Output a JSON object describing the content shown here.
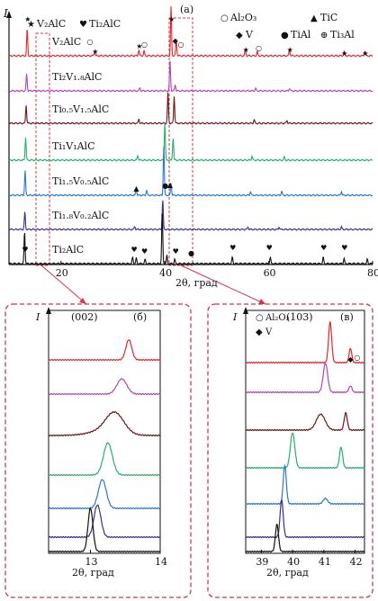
{
  "chart_data": [
    {
      "panel": "(а)",
      "type": "line",
      "xlabel": "2θ, град",
      "ylabel": "I",
      "xlim": [
        10,
        80
      ],
      "x_ticks": [
        20,
        40,
        60,
        80
      ],
      "grid": false,
      "legend": {
        "placement": "top",
        "entries": [
          {
            "symbol": "★",
            "label": "V₂AlC"
          },
          {
            "symbol": "♥",
            "label": "Ti₂AlC"
          },
          {
            "symbol": "○",
            "label": "Al₂O₃"
          },
          {
            "symbol": "▲",
            "label": "TiC"
          },
          {
            "symbol": "◆",
            "label": "V"
          },
          {
            "symbol": "●",
            "label": "TiAl"
          },
          {
            "symbol": "⊕",
            "label": "Ti₃Al"
          }
        ]
      },
      "series": [
        {
          "name": "V₂AlC",
          "color": "#e8232a",
          "peaks": [
            {
              "x": 13.5,
              "h": 0.55
            },
            {
              "x": 26.5,
              "h": 0.08
            },
            {
              "x": 35.0,
              "h": 0.12
            },
            {
              "x": 36.0,
              "h": 0.1
            },
            {
              "x": 41.2,
              "h": 1.0
            },
            {
              "x": 42.2,
              "h": 0.35
            },
            {
              "x": 55.5,
              "h": 0.12
            },
            {
              "x": 57.8,
              "h": 0.08
            },
            {
              "x": 64.0,
              "h": 0.12
            },
            {
              "x": 74.5,
              "h": 0.08
            },
            {
              "x": 78.5,
              "h": 0.1
            }
          ]
        },
        {
          "name": "Ti₂V₁.₈AlC",
          "color": "#b545b5",
          "peaks": [
            {
              "x": 13.4,
              "h": 0.55
            },
            {
              "x": 35.2,
              "h": 0.1
            },
            {
              "x": 41.0,
              "h": 0.95
            },
            {
              "x": 42.0,
              "h": 0.2
            },
            {
              "x": 57.5,
              "h": 0.08
            },
            {
              "x": 64.0,
              "h": 0.08
            }
          ]
        },
        {
          "name": "Ti₀.₅V₁.₅AlC",
          "color": "#6b1616",
          "peaks": [
            {
              "x": 13.3,
              "h": 0.5
            },
            {
              "x": 35.0,
              "h": 0.12
            },
            {
              "x": 40.6,
              "h": 0.85
            },
            {
              "x": 41.8,
              "h": 0.75
            },
            {
              "x": 57.2,
              "h": 0.1
            },
            {
              "x": 63.5,
              "h": 0.08
            }
          ]
        },
        {
          "name": "Ti₁V₁AlC",
          "color": "#25b06b",
          "peaks": [
            {
              "x": 13.2,
              "h": 0.55
            },
            {
              "x": 34.8,
              "h": 0.12
            },
            {
              "x": 40.0,
              "h": 0.9
            },
            {
              "x": 41.6,
              "h": 0.55
            },
            {
              "x": 56.8,
              "h": 0.1
            },
            {
              "x": 63.0,
              "h": 0.08
            }
          ]
        },
        {
          "name": "Ti₁.₅V₀.₅AlC",
          "color": "#2a78c9",
          "peaks": [
            {
              "x": 13.1,
              "h": 0.5
            },
            {
              "x": 34.5,
              "h": 0.12
            },
            {
              "x": 36.5,
              "h": 0.1
            },
            {
              "x": 39.8,
              "h": 1.0
            },
            {
              "x": 41.2,
              "h": 0.25
            },
            {
              "x": 56.5,
              "h": 0.08
            },
            {
              "x": 62.5,
              "h": 0.08
            },
            {
              "x": 74.0,
              "h": 0.08
            }
          ]
        },
        {
          "name": "Ti₁.₈V₀.₂AlC",
          "color": "#3a2f8a",
          "peaks": [
            {
              "x": 13.05,
              "h": 0.55
            },
            {
              "x": 34.2,
              "h": 0.1
            },
            {
              "x": 39.6,
              "h": 0.95
            },
            {
              "x": 56.0,
              "h": 0.08
            },
            {
              "x": 62.0,
              "h": 0.08
            },
            {
              "x": 74.0,
              "h": 0.08
            }
          ]
        },
        {
          "name": "Ti₂AlC",
          "color": "#111111",
          "peaks": [
            {
              "x": 13.0,
              "h": 0.6
            },
            {
              "x": 33.8,
              "h": 0.12
            },
            {
              "x": 34.5,
              "h": 0.1
            },
            {
              "x": 36.2,
              "h": 0.08
            },
            {
              "x": 39.5,
              "h": 1.0
            },
            {
              "x": 40.4,
              "h": 0.15
            },
            {
              "x": 41.9,
              "h": 0.08
            },
            {
              "x": 53.0,
              "h": 0.12
            },
            {
              "x": 60.3,
              "h": 0.12
            },
            {
              "x": 70.5,
              "h": 0.12
            },
            {
              "x": 74.5,
              "h": 0.1
            },
            {
              "x": 79.0,
              "h": 0.08
            }
          ]
        }
      ]
    },
    {
      "panel": "(б)",
      "type": "line",
      "annotation": "(002)",
      "xlabel": "2θ, град",
      "ylabel": "I",
      "xlim": [
        12.4,
        14.0
      ],
      "x_ticks": [
        13,
        14
      ],
      "series": [
        {
          "color": "#e8232a",
          "peak_x": 13.55,
          "width": 0.06,
          "h": 0.8
        },
        {
          "color": "#b545b5",
          "peak_x": 13.45,
          "width": 0.1,
          "h": 0.7
        },
        {
          "color": "#6b1616",
          "peak_x": 13.35,
          "width": 0.18,
          "h": 0.65
        },
        {
          "color": "#25b06b",
          "peak_x": 13.25,
          "width": 0.09,
          "h": 0.85
        },
        {
          "color": "#2a78c9",
          "peak_x": 13.17,
          "width": 0.08,
          "h": 0.8
        },
        {
          "color": "#3a2f8a",
          "peak_x": 13.1,
          "width": 0.07,
          "h": 0.85
        },
        {
          "color": "#111111",
          "peak_x": 13.0,
          "width": 0.05,
          "h": 1.0
        }
      ]
    },
    {
      "panel": "(в)",
      "type": "line",
      "annotation": "(103)",
      "legend": [
        {
          "symbol": "○",
          "label": "Al₂O₃"
        },
        {
          "symbol": "◆",
          "label": "V"
        }
      ],
      "xlabel": "2θ, град",
      "ylabel": "I",
      "xlim": [
        38.5,
        42.3
      ],
      "x_ticks": [
        39,
        40,
        41,
        42
      ],
      "series": [
        {
          "color": "#e8232a",
          "peaks": [
            {
              "x": 41.2,
              "w": 0.07,
              "h": 1.0
            },
            {
              "x": 41.85,
              "w": 0.06,
              "h": 0.35
            }
          ]
        },
        {
          "color": "#b545b5",
          "peaks": [
            {
              "x": 41.05,
              "w": 0.1,
              "h": 0.9
            },
            {
              "x": 41.85,
              "w": 0.07,
              "h": 0.2
            }
          ]
        },
        {
          "color": "#6b1616",
          "peaks": [
            {
              "x": 40.9,
              "w": 0.2,
              "h": 0.55
            },
            {
              "x": 41.7,
              "w": 0.07,
              "h": 0.6
            }
          ]
        },
        {
          "color": "#25b06b",
          "peaks": [
            {
              "x": 40.0,
              "w": 0.1,
              "h": 0.85
            },
            {
              "x": 41.55,
              "w": 0.07,
              "h": 0.5
            }
          ]
        },
        {
          "color": "#2a78c9",
          "peaks": [
            {
              "x": 39.75,
              "w": 0.07,
              "h": 0.85
            },
            {
              "x": 41.05,
              "w": 0.1,
              "h": 0.12
            }
          ]
        },
        {
          "color": "#3a2f8a",
          "peaks": [
            {
              "x": 39.65,
              "w": 0.07,
              "h": 0.9
            }
          ]
        },
        {
          "color": "#111111",
          "peaks": [
            {
              "x": 39.5,
              "w": 0.07,
              "h": 0.75
            }
          ]
        }
      ]
    }
  ],
  "labels": {
    "main_panel": "(а)",
    "main_y": "I",
    "main_x": "2θ, град",
    "left_panel": "(б)",
    "left_annotation": "(002)",
    "left_y": "I",
    "left_x": "2θ, град",
    "right_panel": "(в)",
    "right_annotation": "(103)",
    "right_y": "I",
    "right_x": "2θ, град"
  },
  "colors": {
    "frame": "#d8344a",
    "connector": "#d8344a"
  }
}
